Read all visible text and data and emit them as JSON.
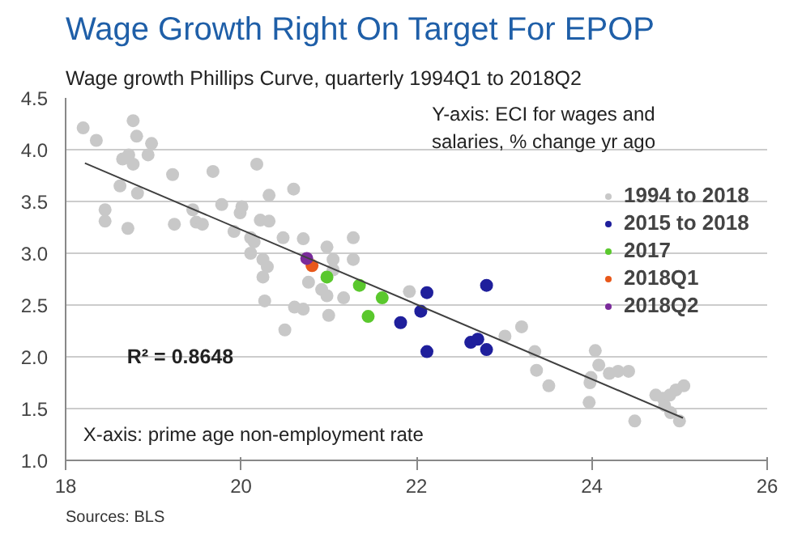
{
  "chart_data": {
    "type": "scatter",
    "title": "Wage Growth Right On Target For EPOP",
    "subtitle": "Wage growth Phillips Curve, quarterly 1994Q1 to 2018Q2",
    "annotations": [
      "Y-axis: ECI for wages and\nsalaries, % change yr ago",
      "R² = 0.8648",
      "X-axis: prime age non-employment rate",
      "Sources: BLS"
    ],
    "xlim": [
      18,
      26
    ],
    "xticks": [
      18,
      20,
      22,
      24,
      26
    ],
    "ylim": [
      1.0,
      4.5
    ],
    "yticks": [
      {
        "value": 1.0,
        "label": "1.0"
      },
      {
        "value": 1.5,
        "label": "1.5"
      },
      {
        "value": 2.0,
        "label": "2.0"
      },
      {
        "value": 2.5,
        "label": "2.5"
      },
      {
        "value": 3.0,
        "label": "3.0"
      },
      {
        "value": 3.5,
        "label": "3.5"
      },
      {
        "value": 4.0,
        "label": "4.0"
      },
      {
        "value": 4.5,
        "label": "4.5"
      }
    ],
    "grid": "y",
    "legend": "top right",
    "marker": "circle",
    "series": [
      {
        "name": "1994 to 2018",
        "color": "#c8c8c8",
        "x": [
          18.2,
          18.35,
          18.77,
          18.81,
          18.98,
          18.94,
          18.65,
          18.72,
          18.77,
          18.62,
          18.82,
          18.45,
          18.45,
          18.71,
          19.22,
          19.68,
          19.24,
          19.45,
          19.49,
          19.56,
          19.78,
          19.99,
          20.01,
          19.92,
          20.18,
          20.32,
          20.22,
          20.32,
          20.11,
          20.15,
          20.11,
          20.25,
          20.3,
          20.25,
          20.27,
          20.48,
          20.6,
          20.5,
          20.61,
          20.71,
          20.71,
          20.77,
          20.98,
          21.05,
          21.05,
          20.92,
          20.98,
          21.0,
          21.17,
          21.28,
          21.28,
          21.92,
          23.01,
          23.2,
          23.35,
          23.37,
          23.51,
          24.04,
          24.08,
          23.99,
          23.98,
          24.2,
          24.3,
          24.42,
          23.97,
          24.49,
          24.73,
          24.81,
          24.89,
          24.96,
          25.05,
          24.9,
          25.0,
          24.83
        ],
        "values": [
          4.21,
          4.09,
          4.28,
          4.13,
          4.06,
          3.95,
          3.91,
          3.95,
          3.86,
          3.65,
          3.58,
          3.42,
          3.31,
          3.24,
          3.76,
          3.79,
          3.28,
          3.42,
          3.3,
          3.28,
          3.47,
          3.39,
          3.45,
          3.21,
          3.86,
          3.56,
          3.32,
          3.31,
          3.15,
          3.11,
          3.0,
          2.94,
          2.87,
          2.77,
          2.54,
          3.15,
          3.62,
          2.26,
          2.48,
          2.46,
          3.14,
          2.72,
          3.06,
          2.94,
          2.84,
          2.65,
          2.59,
          2.4,
          2.57,
          3.15,
          2.94,
          2.63,
          2.2,
          2.29,
          2.05,
          1.87,
          1.72,
          2.06,
          1.92,
          1.8,
          1.75,
          1.84,
          1.86,
          1.86,
          1.56,
          1.38,
          1.63,
          1.6,
          1.63,
          1.68,
          1.72,
          1.46,
          1.38,
          1.53
        ]
      },
      {
        "name": "2015 to 2018",
        "color": "#1f1f9c",
        "x": [
          22.12,
          22.05,
          21.82,
          22.12,
          22.62,
          22.7,
          22.8,
          22.8
        ],
        "values": [
          2.62,
          2.44,
          2.33,
          2.05,
          2.14,
          2.17,
          2.07,
          2.69
        ]
      },
      {
        "name": "2017",
        "color": "#5ac82d",
        "x": [
          20.98,
          21.35,
          21.45,
          21.61
        ],
        "values": [
          2.77,
          2.69,
          2.39,
          2.57
        ]
      },
      {
        "name": "2018Q1",
        "color": "#e8581a",
        "x": [
          20.81
        ],
        "values": [
          2.88
        ]
      },
      {
        "name": "2018Q2",
        "color": "#7a2a9a",
        "x": [
          20.75
        ],
        "values": [
          2.95
        ]
      },
      {
        "type": "line",
        "marker": "none",
        "color": "#404040",
        "x": [
          18.22,
          25.04
        ],
        "values": [
          3.87,
          1.41
        ]
      }
    ]
  }
}
